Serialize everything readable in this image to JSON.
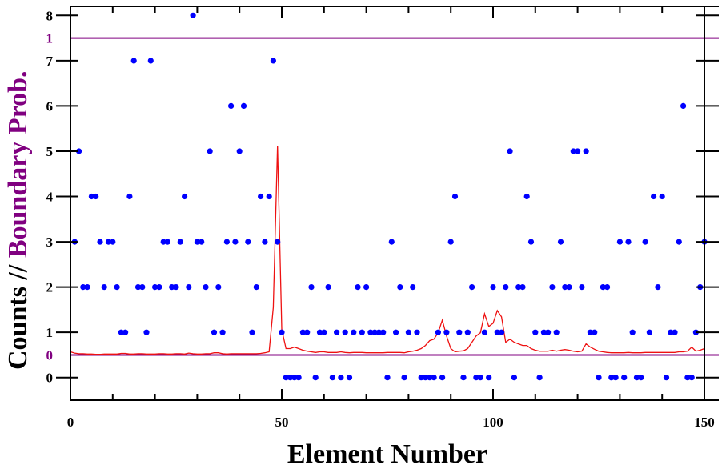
{
  "chart_data": {
    "type": "scatter",
    "xlabel": "Element Number",
    "ylabel_counts": "Counts",
    "ylabel_sep": " // ",
    "ylabel_prob": "Boundary Prob.",
    "xlim": [
      0,
      150
    ],
    "ylim": [
      -0.5,
      8.2
    ],
    "x_ticks": [
      0,
      50,
      100,
      150
    ],
    "y_ticks": [
      0,
      1,
      2,
      3,
      4,
      5,
      6,
      7,
      8
    ],
    "prob_ticks": [
      {
        "label": "0",
        "at_count": 0.5
      },
      {
        "label": "1",
        "at_count": 7.5
      }
    ],
    "colors": {
      "points": "#0000ff",
      "line": "#ee1111",
      "boundary": "#800080",
      "axis": "#000000"
    },
    "series": [
      {
        "kind": "points",
        "x": [
          1,
          2,
          3,
          4,
          5,
          6,
          7,
          8,
          9,
          10,
          11,
          12,
          13,
          14,
          15,
          16,
          17,
          18,
          19,
          20,
          21,
          22,
          23,
          24,
          25,
          26,
          27,
          28,
          29,
          30,
          31,
          32,
          33,
          34,
          35,
          36,
          37,
          38,
          39,
          40,
          41,
          42,
          43,
          44,
          45,
          46,
          47,
          48,
          49,
          50,
          51,
          52,
          53,
          54,
          55,
          56,
          57,
          58,
          59,
          60,
          61,
          62,
          63,
          64,
          65,
          66,
          67,
          68,
          69,
          70,
          71,
          72,
          73,
          74,
          75,
          76,
          77,
          78,
          79,
          80,
          81,
          82,
          83,
          84,
          85,
          86,
          87,
          88,
          89,
          90,
          91,
          92,
          93,
          94,
          95,
          96,
          97,
          98,
          99,
          100,
          101,
          102,
          103,
          104,
          105,
          106,
          107,
          108,
          109,
          110,
          111,
          112,
          113,
          114,
          115,
          116,
          117,
          118,
          119,
          120,
          121,
          122,
          123,
          124,
          125,
          126,
          127,
          128,
          129,
          130,
          131,
          132,
          133,
          134,
          135,
          136,
          137,
          138,
          139,
          140,
          141,
          142,
          143,
          144,
          145,
          146,
          147,
          148,
          149,
          150
        ],
        "y": [
          3,
          5,
          2,
          2,
          4,
          4,
          3,
          2,
          3,
          3,
          2,
          1,
          1,
          4,
          7,
          2,
          2,
          1,
          7,
          2,
          2,
          3,
          3,
          2,
          2,
          3,
          4,
          2,
          8,
          3,
          3,
          2,
          5,
          1,
          2,
          1,
          3,
          6,
          3,
          5,
          6,
          3,
          1,
          2,
          4,
          3,
          4,
          7,
          3,
          1,
          0,
          0,
          0,
          0,
          1,
          1,
          2,
          0,
          1,
          1,
          2,
          0,
          1,
          0,
          1,
          0,
          1,
          2,
          1,
          2,
          1,
          1,
          1,
          1,
          0,
          3,
          1,
          2,
          0,
          1,
          2,
          1,
          0,
          0,
          0,
          0,
          1,
          0,
          1,
          3,
          4,
          1,
          0,
          1,
          2,
          0,
          0,
          1,
          0,
          2,
          1,
          1,
          2,
          5,
          0,
          2,
          2,
          4,
          3,
          1,
          0,
          1,
          1,
          2,
          1,
          3,
          2,
          2,
          5,
          5,
          2,
          5,
          1,
          1,
          0,
          2,
          2,
          0,
          0,
          3,
          0,
          3,
          1,
          0,
          0,
          3,
          1,
          4,
          2,
          4,
          0,
          1,
          1,
          3,
          6,
          0,
          0,
          1,
          2,
          3
        ]
      },
      {
        "kind": "line",
        "name": "",
        "x": [
          0,
          1,
          2,
          3,
          4,
          5,
          6,
          7,
          8,
          9,
          10,
          11,
          12,
          13,
          14,
          15,
          16,
          17,
          18,
          19,
          20,
          21,
          22,
          23,
          24,
          25,
          26,
          27,
          28,
          29,
          30,
          31,
          32,
          33,
          34,
          35,
          36,
          37,
          38,
          39,
          40,
          41,
          42,
          43,
          44,
          45,
          46,
          47,
          48,
          49,
          50,
          51,
          52,
          53,
          54,
          55,
          56,
          57,
          58,
          59,
          60,
          61,
          62,
          63,
          64,
          65,
          66,
          67,
          68,
          69,
          70,
          71,
          72,
          73,
          74,
          75,
          76,
          77,
          78,
          79,
          80,
          81,
          82,
          83,
          84,
          85,
          86,
          87,
          88,
          89,
          90,
          91,
          92,
          93,
          94,
          95,
          96,
          97,
          98,
          99,
          100,
          101,
          102,
          103,
          104,
          105,
          106,
          107,
          108,
          109,
          110,
          111,
          112,
          113,
          114,
          115,
          116,
          117,
          118,
          119,
          120,
          121,
          122,
          123,
          124,
          125,
          126,
          127,
          128,
          129,
          130,
          131,
          132,
          133,
          134,
          135,
          136,
          137,
          138,
          139,
          140,
          141,
          142,
          143,
          144,
          145,
          146,
          147,
          148,
          149,
          150
        ],
        "p": [
          0.01,
          0.006,
          0.004,
          0.004,
          0.003,
          0.003,
          0.002,
          0.002,
          0.003,
          0.003,
          0.003,
          0.003,
          0.005,
          0.005,
          0.003,
          0.003,
          0.004,
          0.004,
          0.003,
          0.003,
          0.003,
          0.004,
          0.004,
          0.003,
          0.003,
          0.004,
          0.004,
          0.003,
          0.006,
          0.004,
          0.003,
          0.003,
          0.004,
          0.004,
          0.007,
          0.007,
          0.004,
          0.003,
          0.004,
          0.004,
          0.004,
          0.004,
          0.004,
          0.004,
          0.004,
          0.005,
          0.007,
          0.01,
          0.15,
          0.66,
          0.08,
          0.02,
          0.02,
          0.025,
          0.02,
          0.015,
          0.012,
          0.01,
          0.008,
          0.01,
          0.01,
          0.008,
          0.008,
          0.008,
          0.01,
          0.008,
          0.007,
          0.008,
          0.008,
          0.008,
          0.007,
          0.007,
          0.007,
          0.007,
          0.007,
          0.008,
          0.008,
          0.008,
          0.008,
          0.007,
          0.01,
          0.012,
          0.015,
          0.02,
          0.03,
          0.045,
          0.05,
          0.07,
          0.11,
          0.06,
          0.02,
          0.01,
          0.012,
          0.013,
          0.02,
          0.04,
          0.06,
          0.07,
          0.13,
          0.09,
          0.1,
          0.14,
          0.12,
          0.04,
          0.05,
          0.04,
          0.035,
          0.03,
          0.03,
          0.02,
          0.015,
          0.012,
          0.012,
          0.012,
          0.015,
          0.012,
          0.015,
          0.017,
          0.015,
          0.012,
          0.01,
          0.012,
          0.035,
          0.025,
          0.018,
          0.012,
          0.01,
          0.008,
          0.007,
          0.007,
          0.007,
          0.007,
          0.008,
          0.007,
          0.007,
          0.007,
          0.008,
          0.008,
          0.008,
          0.008,
          0.008,
          0.008,
          0.008,
          0.008,
          0.01,
          0.01,
          0.012,
          0.025,
          0.012,
          0.015,
          0.02
        ]
      }
    ]
  }
}
